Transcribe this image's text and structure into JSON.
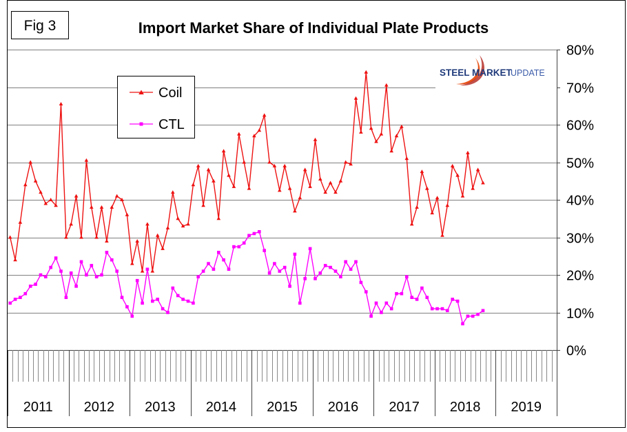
{
  "figure_label": "Fig 3",
  "logo": {
    "text_bold": "STEEL MARKET",
    "text_light": "UPDATE",
    "colors": {
      "swoosh": "#e8541b",
      "swoosh_dark": "#b3261e",
      "text": "#1f3a7a",
      "text_light": "#3b5ca8"
    }
  },
  "colors": {
    "coil": "#ee1111",
    "ctl": "#ff00ff",
    "grid": "#7f7f7f",
    "axis": "#404040",
    "text": "#000000"
  },
  "chart_data": {
    "type": "line",
    "title": "Import Market Share of Individual Plate Products",
    "xlabel": "",
    "ylabel": "",
    "ylim": [
      0,
      80
    ],
    "y_ticks": [
      0,
      10,
      20,
      30,
      40,
      50,
      60,
      70,
      80
    ],
    "y_tick_labels": [
      "0%",
      "10%",
      "20%",
      "30%",
      "40%",
      "50%",
      "60%",
      "70%",
      "80%"
    ],
    "y_axis_side": "right",
    "grid": true,
    "legend_position": "top-left",
    "x_unit": "month index (0 = Jan 2011)",
    "x_range_months": [
      0,
      108
    ],
    "year_labels": [
      "2011",
      "2012",
      "2013",
      "2014",
      "2015",
      "2016",
      "2017",
      "2018",
      "2019"
    ],
    "series": [
      {
        "name": "Coil",
        "marker": "triangle",
        "values": [
          30,
          24,
          34,
          44,
          50,
          45,
          42,
          39,
          40,
          38.5,
          65.5,
          30,
          33.5,
          41,
          30,
          50.5,
          38,
          30,
          38,
          29,
          38,
          41,
          40,
          36,
          23,
          29,
          21,
          33.5,
          21,
          30.5,
          27,
          32.5,
          42,
          35,
          33,
          33.5,
          44,
          49,
          38.5,
          48,
          45,
          35,
          53,
          46.5,
          43.5,
          57.5,
          50,
          43,
          57,
          58.5,
          62.5,
          50,
          49,
          42.5,
          49,
          43,
          37,
          40.5,
          48,
          43.5,
          56,
          45.5,
          42,
          44.5,
          42,
          45,
          50,
          49.5,
          67,
          58,
          74,
          59,
          55.5,
          57.5,
          70.5,
          53,
          57,
          59.5,
          51,
          33.5,
          38,
          47.5,
          43,
          36.5,
          40.5,
          30.5,
          38.5,
          49,
          46.5,
          41,
          52.5,
          43,
          48,
          44.5
        ]
      },
      {
        "name": "CTL",
        "marker": "square",
        "values": [
          12.5,
          13.5,
          14,
          15,
          17,
          17.5,
          20,
          19.5,
          22,
          24.5,
          21,
          14,
          20.5,
          17,
          23.5,
          20,
          22.5,
          19.5,
          20,
          26,
          24,
          21,
          14,
          11.5,
          9,
          18.5,
          12.5,
          21.5,
          13,
          13.5,
          11,
          10,
          16.5,
          14.5,
          13.5,
          13,
          12.5,
          19.5,
          21,
          23,
          21.5,
          26,
          24,
          21.5,
          27.5,
          27.5,
          28.5,
          30.5,
          31,
          31.5,
          26.5,
          20.5,
          23,
          21,
          22,
          17,
          25.5,
          12.5,
          19,
          27,
          19,
          20.5,
          22.5,
          22,
          21,
          19.5,
          23.5,
          21.5,
          23.5,
          18,
          15.5,
          9,
          12.5,
          10,
          12.5,
          11,
          15,
          15,
          19.5,
          14,
          13.5,
          16.5,
          14,
          11,
          11,
          11,
          10.5,
          13.5,
          13,
          7,
          9,
          9,
          9.5,
          10.5
        ]
      }
    ]
  }
}
